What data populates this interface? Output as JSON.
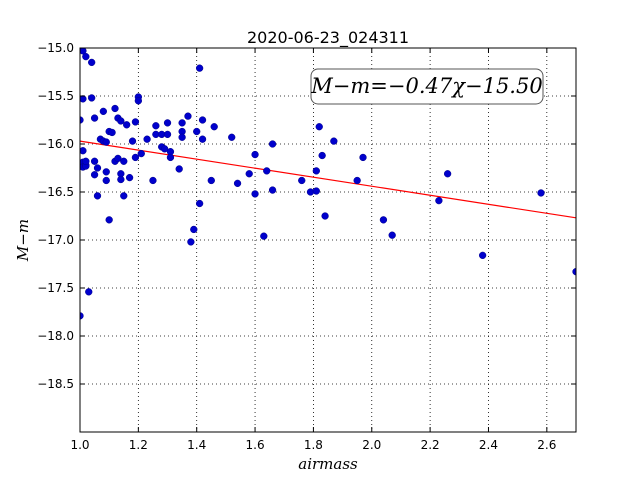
{
  "chart_data": {
    "type": "scatter",
    "title": "2020-06-23_024311",
    "xlabel": "airmass",
    "ylabel": "M−m",
    "xlim": [
      1.0,
      2.7
    ],
    "ylim": [
      -19.0,
      -15.0
    ],
    "y_inverted": true,
    "grid": true,
    "grid_style": "dotted",
    "x_ticks": [
      1.0,
      1.2,
      1.4,
      1.6,
      1.8,
      2.0,
      2.2,
      2.4,
      2.6
    ],
    "x_tick_labels": [
      "1.0",
      "1.2",
      "1.4",
      "1.6",
      "1.8",
      "2.0",
      "2.2",
      "2.4",
      "2.6"
    ],
    "y_ticks": [
      -15.0,
      -15.5,
      -16.0,
      -16.5,
      -17.0,
      -17.5,
      -18.0,
      -18.5
    ],
    "y_tick_labels": [
      "−15.0",
      "−15.5",
      "−16.0",
      "−16.5",
      "−17.0",
      "−17.5",
      "−18.0",
      "−18.5"
    ],
    "annotation": "M−m=−0.47χ−15.50",
    "point_color": "#0000cc",
    "line_color": "#ff0000",
    "fit": {
      "slope": -0.47,
      "intercept": -15.5
    },
    "points": [
      [
        1.0,
        -15.75
      ],
      [
        1.0,
        -17.79
      ],
      [
        1.01,
        -15.03
      ],
      [
        1.01,
        -15.53
      ],
      [
        1.01,
        -16.07
      ],
      [
        1.01,
        -16.19
      ],
      [
        1.01,
        -16.24
      ],
      [
        1.02,
        -16.22
      ],
      [
        1.02,
        -16.23
      ],
      [
        1.02,
        -16.18
      ],
      [
        1.02,
        -15.09
      ],
      [
        1.03,
        -17.54
      ],
      [
        1.04,
        -15.15
      ],
      [
        1.04,
        -15.52
      ],
      [
        1.05,
        -16.18
      ],
      [
        1.05,
        -16.32
      ],
      [
        1.05,
        -15.73
      ],
      [
        1.06,
        -16.25
      ],
      [
        1.06,
        -16.54
      ],
      [
        1.07,
        -15.95
      ],
      [
        1.08,
        -15.97
      ],
      [
        1.08,
        -15.66
      ],
      [
        1.09,
        -16.38
      ],
      [
        1.09,
        -16.29
      ],
      [
        1.09,
        -15.98
      ],
      [
        1.1,
        -15.87
      ],
      [
        1.1,
        -16.79
      ],
      [
        1.11,
        -15.88
      ],
      [
        1.12,
        -15.63
      ],
      [
        1.12,
        -16.18
      ],
      [
        1.13,
        -16.15
      ],
      [
        1.13,
        -15.73
      ],
      [
        1.14,
        -15.76
      ],
      [
        1.14,
        -16.31
      ],
      [
        1.14,
        -16.37
      ],
      [
        1.15,
        -16.54
      ],
      [
        1.15,
        -16.18
      ],
      [
        1.16,
        -15.8
      ],
      [
        1.17,
        -16.35
      ],
      [
        1.18,
        -15.97
      ],
      [
        1.19,
        -15.77
      ],
      [
        1.19,
        -16.14
      ],
      [
        1.2,
        -15.51
      ],
      [
        1.2,
        -15.55
      ],
      [
        1.21,
        -16.1
      ],
      [
        1.23,
        -15.95
      ],
      [
        1.25,
        -16.38
      ],
      [
        1.26,
        -15.81
      ],
      [
        1.26,
        -15.9
      ],
      [
        1.28,
        -15.9
      ],
      [
        1.28,
        -16.03
      ],
      [
        1.29,
        -16.05
      ],
      [
        1.3,
        -15.78
      ],
      [
        1.3,
        -15.9
      ],
      [
        1.31,
        -16.08
      ],
      [
        1.31,
        -16.14
      ],
      [
        1.34,
        -16.26
      ],
      [
        1.35,
        -15.78
      ],
      [
        1.35,
        -15.87
      ],
      [
        1.35,
        -15.93
      ],
      [
        1.37,
        -15.71
      ],
      [
        1.38,
        -17.02
      ],
      [
        1.39,
        -16.89
      ],
      [
        1.4,
        -15.87
      ],
      [
        1.41,
        -16.62
      ],
      [
        1.41,
        -15.21
      ],
      [
        1.42,
        -15.75
      ],
      [
        1.42,
        -15.95
      ],
      [
        1.45,
        -16.38
      ],
      [
        1.46,
        -15.82
      ],
      [
        1.52,
        -15.93
      ],
      [
        1.54,
        -16.41
      ],
      [
        1.58,
        -16.31
      ],
      [
        1.6,
        -16.11
      ],
      [
        1.6,
        -16.52
      ],
      [
        1.63,
        -16.96
      ],
      [
        1.64,
        -16.28
      ],
      [
        1.66,
        -16.0
      ],
      [
        1.66,
        -16.48
      ],
      [
        1.76,
        -16.38
      ],
      [
        1.79,
        -16.5
      ],
      [
        1.81,
        -16.49
      ],
      [
        1.81,
        -16.28
      ],
      [
        1.82,
        -15.82
      ],
      [
        1.83,
        -16.12
      ],
      [
        1.84,
        -16.75
      ],
      [
        1.87,
        -15.97
      ],
      [
        1.95,
        -16.38
      ],
      [
        1.97,
        -16.14
      ],
      [
        2.04,
        -16.79
      ],
      [
        2.07,
        -16.95
      ],
      [
        2.23,
        -16.59
      ],
      [
        2.26,
        -16.31
      ],
      [
        2.38,
        -17.16
      ],
      [
        2.58,
        -16.51
      ],
      [
        2.7,
        -17.33
      ]
    ]
  }
}
